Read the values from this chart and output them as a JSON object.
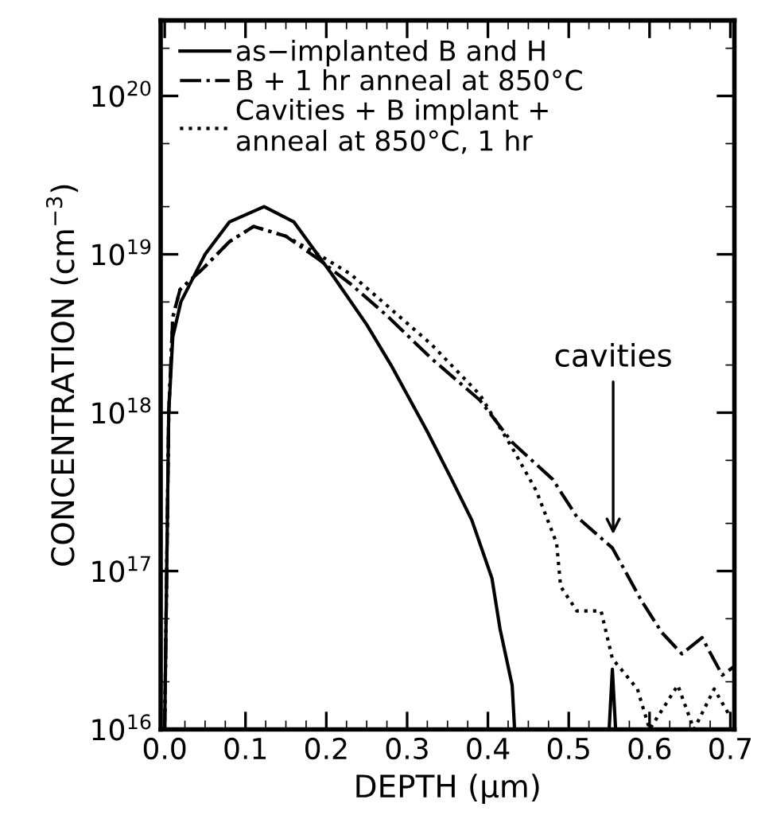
{
  "chart_data": {
    "type": "line",
    "xlabel": "DEPTH (μm)",
    "ylabel": "CONCENTRATION (cm$^{−3}$)",
    "log": "y",
    "xlim": [
      -0.005,
      0.705
    ],
    "xticks": [
      {
        "value": 0.0,
        "label": "0.0"
      },
      {
        "value": 0.1,
        "label": "0.1"
      },
      {
        "value": 0.2,
        "label": "0.2"
      },
      {
        "value": 0.3,
        "label": "0.3"
      },
      {
        "value": 0.4,
        "label": "0.4"
      },
      {
        "value": 0.5,
        "label": "0.5"
      },
      {
        "value": 0.6,
        "label": "0.6"
      },
      {
        "value": 0.7,
        "label": "0.7"
      }
    ],
    "ylim": [
      1e+16,
      3e+20
    ],
    "yticks": [
      {
        "value": 1e+16,
        "label": "10$^{16}$"
      },
      {
        "value": 1e+17,
        "label": "10$^{17}$"
      },
      {
        "value": 1e+18,
        "label": "10$^{18}$"
      },
      {
        "value": 1e+19,
        "label": "10$^{19}$"
      },
      {
        "value": 1e+20,
        "label": "10$^{20}$"
      }
    ],
    "legend": "top left",
    "grid": false,
    "series": [
      {
        "name": "as−implanted B and H",
        "color": "#000000",
        "line_style": "solid",
        "x": [
          0.0,
          0.005,
          0.01,
          0.02,
          0.05,
          0.08,
          0.123,
          0.16,
          0.206,
          0.25,
          0.28,
          0.325,
          0.355,
          0.38,
          0.405,
          0.415,
          0.43,
          0.433,
          0.44,
          0.55,
          0.554,
          0.558
        ],
        "values": [
          1e+16,
          1e+18,
          3e+18,
          5e+18,
          1e+19,
          1.6e+19,
          2e+19,
          1.6e+19,
          7.6e+18,
          3.6e+18,
          2e+18,
          7.6e+17,
          3.8e+17,
          2.1e+17,
          9e+16,
          4.3e+16,
          1.9e+16,
          1e+16,
          null,
          1e+16,
          2.4e+16,
          1e+16
        ]
      },
      {
        "name": "B + 1 hr anneal at 850°C",
        "color": "#000000",
        "line_style": "dashdot",
        "x": [
          0.0,
          0.005,
          0.01,
          0.019,
          0.046,
          0.08,
          0.11,
          0.15,
          0.188,
          0.23,
          0.275,
          0.33,
          0.39,
          0.43,
          0.48,
          0.51,
          0.554,
          0.59,
          0.615,
          0.64,
          0.665,
          0.69,
          0.705
        ],
        "values": [
          1e+16,
          1e+18,
          4e+18,
          6e+18,
          8e+18,
          1.2e+19,
          1.5e+19,
          1.3e+19,
          9.5e+18,
          6.5e+18,
          4.1e+18,
          2.2e+18,
          1.2e+18,
          6.5e+17,
          3.8e+17,
          2.2e+17,
          1.4e+17,
          6.5e+16,
          4.1e+16,
          3e+16,
          3.8e+16,
          2.2e+16,
          2.5e+16
        ]
      },
      {
        "name": "Cavities + B implant +\nanneal at 850°C, 1 hr",
        "color": "#000000",
        "line_style": "dotted",
        "x": [
          0.0,
          0.005,
          0.01,
          0.019,
          0.046,
          0.08,
          0.11,
          0.15,
          0.19,
          0.23,
          0.27,
          0.33,
          0.39,
          0.43,
          0.46,
          0.485,
          0.49,
          0.51,
          0.54,
          0.554,
          0.585,
          0.6,
          0.635,
          0.655,
          0.68,
          0.7
        ],
        "values": [
          1e+16,
          1e+18,
          4e+18,
          6e+18,
          8e+18,
          1.2e+19,
          1.5e+19,
          1.3e+19,
          1e+19,
          7.5e+18,
          5e+18,
          2.7e+18,
          1.3e+18,
          6e+17,
          3.2e+17,
          1.5e+17,
          8e+16,
          5.6e+16,
          5.6e+16,
          2.8e+16,
          1.8e+16,
          1e+16,
          1.9e+16,
          1e+16,
          1.8e+16,
          1.2e+16
        ]
      }
    ],
    "annotations": [
      {
        "text": "cavities",
        "x": 0.555,
        "y": 1.6e+17
      }
    ]
  }
}
